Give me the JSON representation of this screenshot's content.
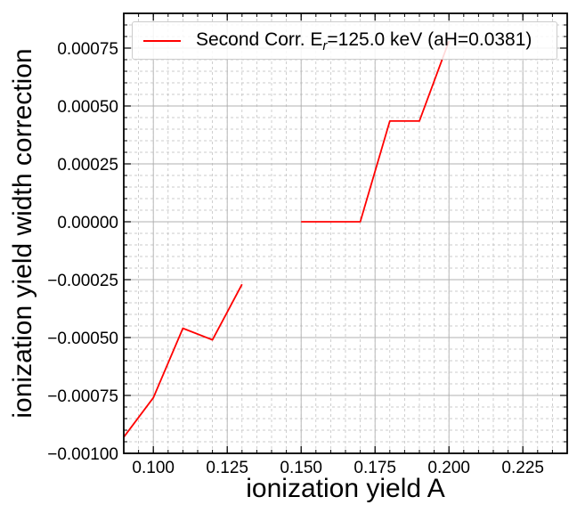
{
  "chart_data": {
    "type": "line",
    "xlabel": "ionization yield A",
    "ylabel": "ionization yield width correction",
    "xlim": [
      0.09,
      0.24
    ],
    "ylim": [
      -0.001,
      0.0009
    ],
    "x_ticks": [
      0.1,
      0.125,
      0.15,
      0.175,
      0.2,
      0.225
    ],
    "x_tick_labels": [
      "0.100",
      "0.125",
      "0.150",
      "0.175",
      "0.200",
      "0.225"
    ],
    "y_ticks": [
      -0.001,
      -0.00075,
      -0.0005,
      -0.00025,
      0.0,
      0.00025,
      0.0005,
      0.00075
    ],
    "y_tick_labels": [
      "−0.00100",
      "−0.00075",
      "−0.00050",
      "−0.00025",
      "0.00000",
      "0.00025",
      "0.00050",
      "0.00075"
    ],
    "grid": true,
    "legend": {
      "placement": "upper-left",
      "label_prefix": "Second Corr. E",
      "label_sub": "r",
      "label_suffix": "=125.0 keV (aH=0.0381)"
    },
    "series": [
      {
        "name": "Second Corr. Er=125.0 keV (aH=0.0381)",
        "color": "#ff0000",
        "segments": [
          [
            [
              0.09,
              -0.00093
            ],
            [
              0.1,
              -0.00076
            ],
            [
              0.11,
              -0.00046
            ],
            [
              0.12,
              -0.00051
            ],
            [
              0.13,
              -0.00027
            ]
          ],
          [
            [
              0.15,
              0.0
            ],
            [
              0.16,
              0.0
            ],
            [
              0.17,
              0.0
            ],
            [
              0.18,
              0.000435
            ],
            [
              0.19,
              0.000435
            ],
            [
              0.2,
              0.00078
            ]
          ]
        ]
      }
    ]
  }
}
